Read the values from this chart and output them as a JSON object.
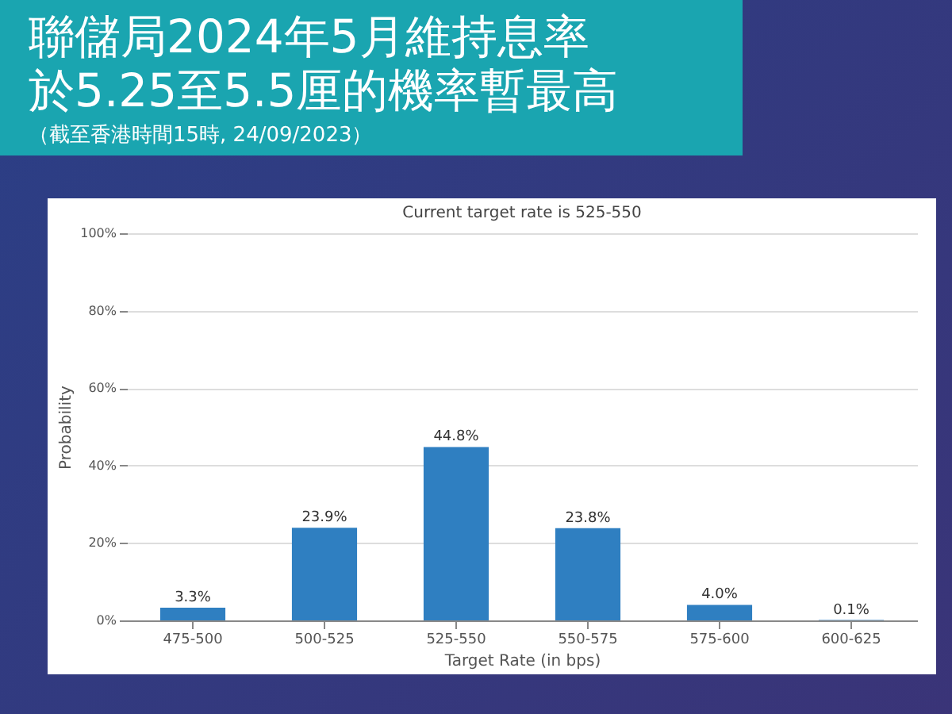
{
  "chart_data": {
    "type": "bar",
    "title": "聯儲局2024年5月維持息率於5.25至5.5厘的機率暫最高",
    "subtitle": "Current target rate is 525-550",
    "xlabel": "Target Rate (in bps)",
    "ylabel": "Probability",
    "annotations": [
      "（截至香港時間15時, 24/09/2023）"
    ],
    "categories": [
      "475-500",
      "500-525",
      "525-550",
      "550-575",
      "575-600",
      "600-625"
    ],
    "values": [
      3.3,
      23.9,
      44.8,
      23.8,
      4.0,
      0.1
    ],
    "value_labels": [
      "3.3%",
      "23.9%",
      "44.8%",
      "23.8%",
      "4.0%",
      "0.1%"
    ],
    "color": "#2f7fc1",
    "ylim": [
      0,
      100
    ],
    "yticks": [
      {
        "value": 0,
        "label": "0%"
      },
      {
        "value": 20,
        "label": "20%"
      },
      {
        "value": 40,
        "label": "40%"
      },
      {
        "value": 60,
        "label": "60%"
      },
      {
        "value": 80,
        "label": "80%"
      },
      {
        "value": 100,
        "label": "100%"
      }
    ],
    "grid": "y"
  }
}
